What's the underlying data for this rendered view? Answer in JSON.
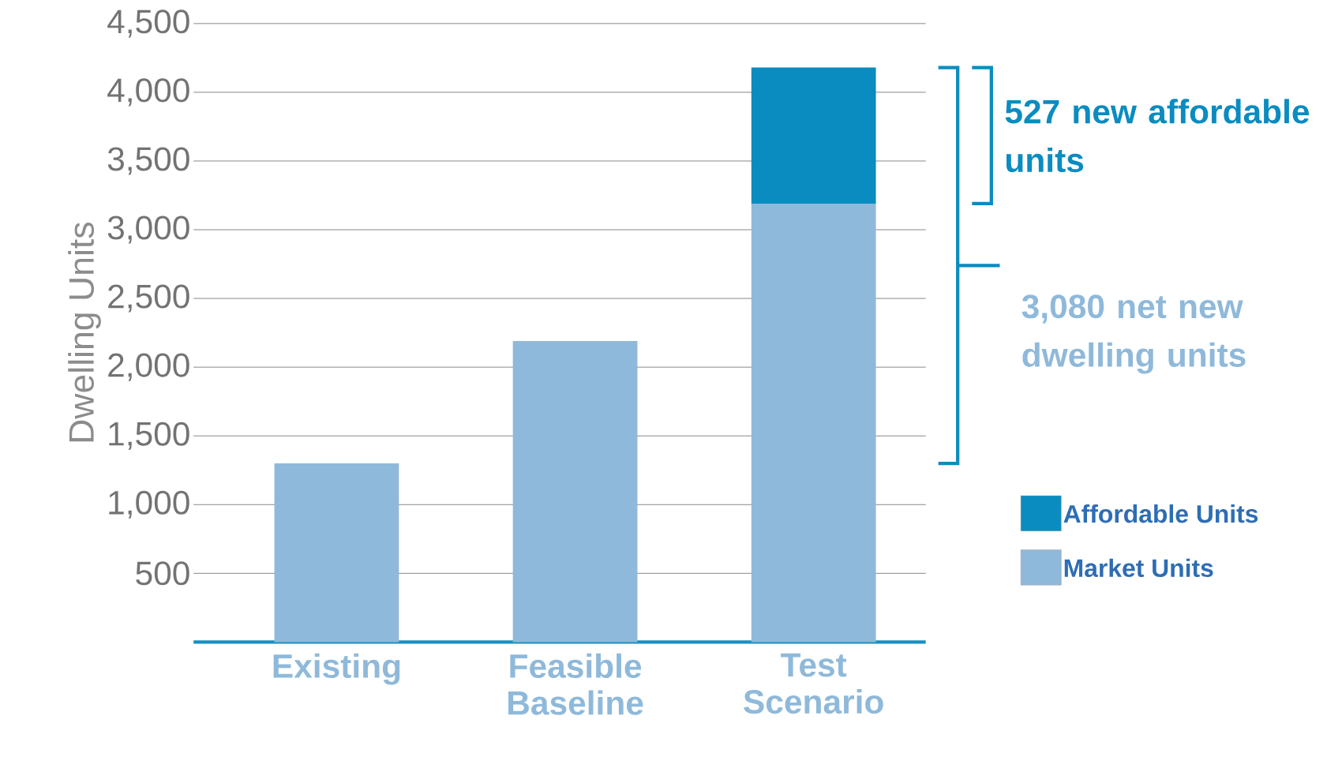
{
  "chart_data": {
    "type": "bar",
    "stacked": true,
    "ylabel": "Dwelling Units",
    "categories": [
      "Existing",
      "Feasible Baseline",
      "Test Scenario"
    ],
    "series": [
      {
        "name": "Market Units",
        "color": "#8fb9da",
        "values": [
          1300,
          2190,
          3190
        ]
      },
      {
        "name": "Affordable Units",
        "color": "#0a8cc0",
        "values": [
          null,
          null,
          990
        ]
      }
    ],
    "ylim": [
      0,
      4500
    ],
    "yticks": [
      {
        "value": 500,
        "label": "500"
      },
      {
        "value": 1000,
        "label": "1,000"
      },
      {
        "value": 1500,
        "label": "1,500"
      },
      {
        "value": 2000,
        "label": "2,000"
      },
      {
        "value": 2500,
        "label": "2,500"
      },
      {
        "value": 3000,
        "label": "3,000"
      },
      {
        "value": 3500,
        "label": "3,500"
      },
      {
        "value": 4000,
        "label": "4,000"
      },
      {
        "value": 4500,
        "label": "4,500"
      }
    ],
    "grid": "y",
    "legend": "right",
    "annotations": [
      "527 new affordable units",
      "3,080 net new dwelling units"
    ]
  }
}
